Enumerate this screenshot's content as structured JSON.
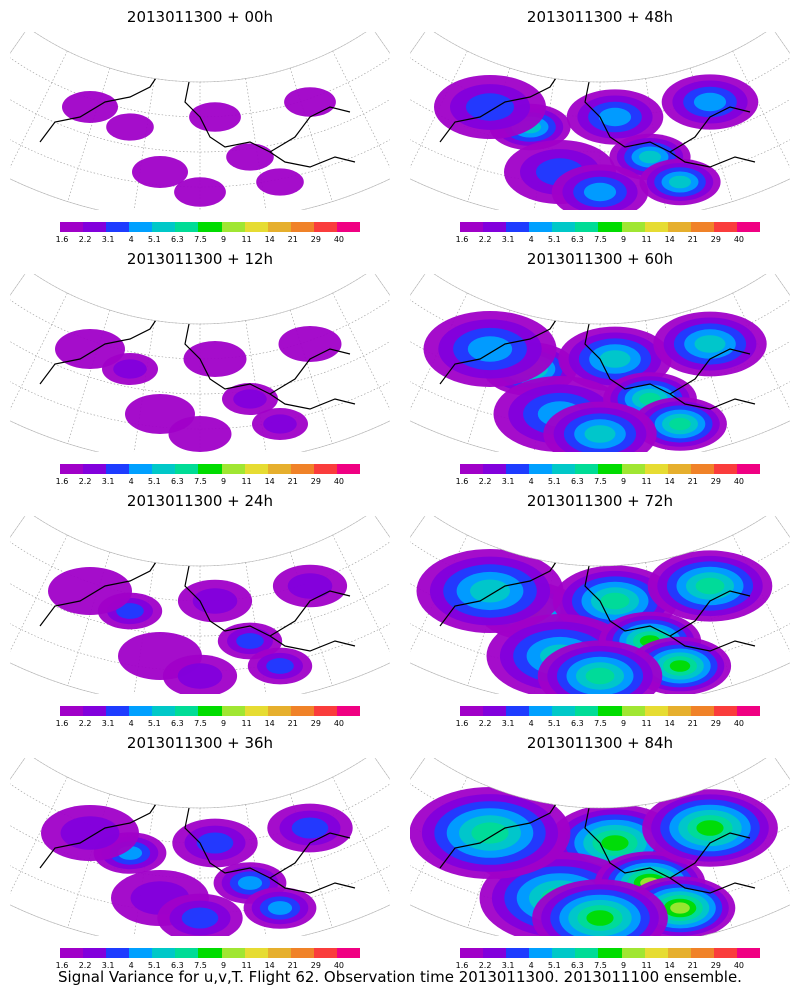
{
  "panels": [
    {
      "title": "2013011300 + 00h",
      "coverage": 0.15
    },
    {
      "title": "2013011300 + 48h",
      "coverage": 0.55
    },
    {
      "title": "2013011300 + 12h",
      "coverage": 0.25
    },
    {
      "title": "2013011300 + 60h",
      "coverage": 0.7
    },
    {
      "title": "2013011300 + 24h",
      "coverage": 0.35
    },
    {
      "title": "2013011300 + 72h",
      "coverage": 0.8
    },
    {
      "title": "2013011300 + 36h",
      "coverage": 0.45
    },
    {
      "title": "2013011300 + 84h",
      "coverage": 0.9
    }
  ],
  "colorbar": {
    "labels": [
      "1.6",
      "2.2",
      "3.1",
      "4",
      "5.1",
      "6.3",
      "7.5",
      "9",
      "11",
      "14",
      "21",
      "29",
      "40"
    ],
    "colors": [
      "#a000c8",
      "#8200dc",
      "#1e3cff",
      "#00a0ff",
      "#00c8c8",
      "#00dc96",
      "#00dc00",
      "#a0e632",
      "#e6dc32",
      "#e6af2d",
      "#f08228",
      "#fa3c3c",
      "#f00082"
    ]
  },
  "footer": "Signal Variance for u,v,T. Flight 62. Observation time 2013011300. 2013011100 ensemble."
}
